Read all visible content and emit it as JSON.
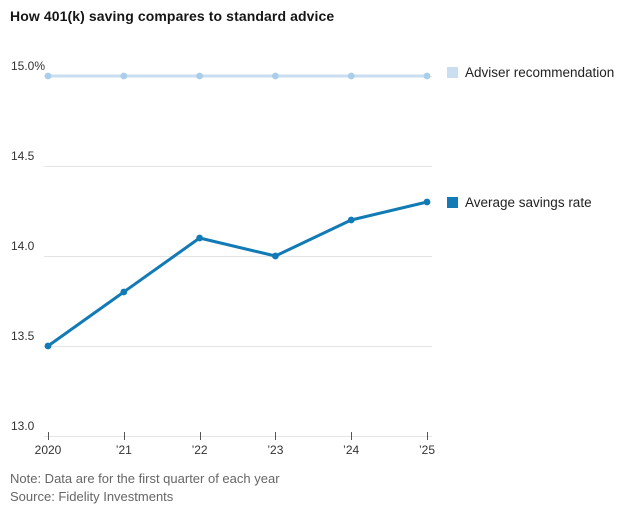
{
  "title": "How 401(k) saving compares to standard advice",
  "note": "Note: Data are for the first quarter of each year",
  "source": "Source: Fidelity Investments",
  "legend": {
    "adviser": "Adviser recommendation",
    "savings": "Average savings rate"
  },
  "colors": {
    "adviser_line": "#c9def1",
    "adviser_dot": "#aacdea",
    "savings_line": "#127ab5",
    "grid": "#e4e4e4",
    "axis_tick": "#555555",
    "axis_label": "#333333",
    "footnote": "#666666"
  },
  "chart_data": {
    "type": "line",
    "x": [
      "2020",
      "’21",
      "’22",
      "’23",
      "’24",
      "’25"
    ],
    "series": [
      {
        "name": "Adviser recommendation",
        "values": [
          15.0,
          15.0,
          15.0,
          15.0,
          15.0,
          15.0
        ],
        "color": "#c9def1",
        "dot_color": "#aacdea"
      },
      {
        "name": "Average savings rate",
        "values": [
          13.5,
          13.8,
          14.1,
          14.0,
          14.2,
          14.3
        ],
        "color": "#127ab5",
        "dot_color": "#127ab5"
      }
    ],
    "title": "How 401(k) saving compares to standard advice",
    "xlabel": "",
    "ylabel": "",
    "ylim": [
      13.0,
      15.0
    ],
    "yticks": [
      {
        "value": 15.0,
        "label": "15.0%"
      },
      {
        "value": 14.5,
        "label": "14.5"
      },
      {
        "value": 14.0,
        "label": "14.0"
      },
      {
        "value": 13.5,
        "label": "13.5"
      },
      {
        "value": 13.0,
        "label": "13.0"
      }
    ],
    "grid": true,
    "legend_position": "right"
  }
}
